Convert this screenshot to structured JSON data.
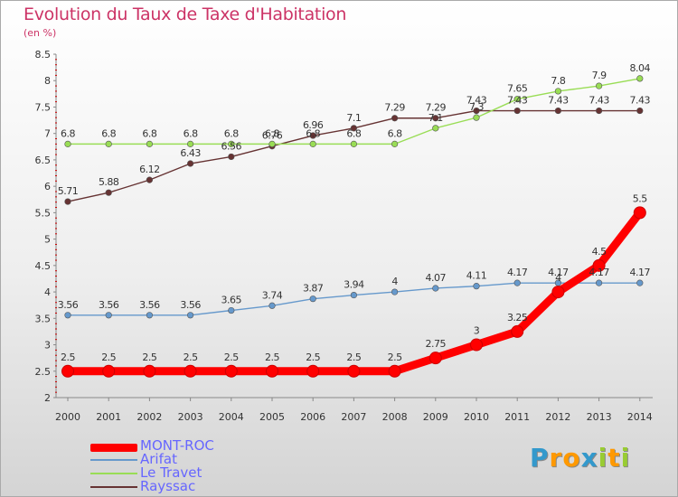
{
  "header": {
    "title": "Evolution du Taux de Taxe d'Habitation",
    "unit": "(en %)"
  },
  "chart_data": {
    "type": "line",
    "title": "Evolution du Taux de Taxe d'Habitation",
    "ylabel": "(en %)",
    "xlabel": "",
    "x": [
      "2000",
      "2001",
      "2002",
      "2003",
      "2004",
      "2005",
      "2006",
      "2007",
      "2008",
      "2009",
      "2010",
      "2011",
      "2012",
      "2013",
      "2014"
    ],
    "ylim": [
      2,
      8.5
    ],
    "yticks": [
      "2",
      "2.5",
      "3",
      "3.5",
      "4",
      "4.5",
      "5",
      "5.5",
      "6",
      "6.5",
      "7",
      "7.5",
      "8",
      "8.5"
    ],
    "grid": false,
    "legend_position": "bottom-left",
    "series": [
      {
        "name": "MONT-ROC",
        "color": "#ff0000",
        "values": [
          2.5,
          2.5,
          2.5,
          2.5,
          2.5,
          2.5,
          2.5,
          2.5,
          2.5,
          2.75,
          3,
          3.25,
          4,
          4.5,
          5.5
        ],
        "labels": [
          "2.5",
          "2.5",
          "2.5",
          "2.5",
          "2.5",
          "2.5",
          "2.5",
          "2.5",
          "2.5",
          "2.75",
          "3",
          "3.25",
          "4",
          "4.5",
          "5.5"
        ]
      },
      {
        "name": "Arifat",
        "color": "#6699cc",
        "values": [
          3.56,
          3.56,
          3.56,
          3.56,
          3.65,
          3.74,
          3.87,
          3.94,
          4,
          4.07,
          4.11,
          4.17,
          4.17,
          4.17,
          4.17
        ],
        "labels": [
          "3.56",
          "3.56",
          "3.56",
          "3.56",
          "3.65",
          "3.74",
          "3.87",
          "3.94",
          "4",
          "4.07",
          "4.11",
          "4.17",
          "4.17",
          "4.17",
          "4.17"
        ]
      },
      {
        "name": "Le Travet",
        "color": "#99dd55",
        "values": [
          6.8,
          6.8,
          6.8,
          6.8,
          6.8,
          6.8,
          6.8,
          6.8,
          6.8,
          7.1,
          7.3,
          7.65,
          7.8,
          7.9,
          8.04
        ],
        "labels": [
          "6.8",
          "6.8",
          "6.8",
          "6.8",
          "6.8",
          "6.8",
          "6.8",
          "6.8",
          "6.8",
          "7.1",
          "7.3",
          "7.65",
          "7.8",
          "7.9",
          "8.04"
        ]
      },
      {
        "name": "Rayssac",
        "color": "#663333",
        "values": [
          5.71,
          5.88,
          6.12,
          6.43,
          6.56,
          6.76,
          6.96,
          7.1,
          7.29,
          7.29,
          7.43,
          7.43,
          7.43,
          7.43,
          7.43
        ],
        "labels": [
          "5.71",
          "5.88",
          "6.12",
          "6.43",
          "6.56",
          "6.76",
          "6.96",
          "7.1",
          "7.29",
          "7.29",
          "7.43",
          "7.43",
          "7.43",
          "7.43",
          "7.43"
        ]
      }
    ]
  },
  "legend": {
    "items": [
      "MONT-ROC",
      "Arifat",
      "Le Travet",
      "Rayssac"
    ]
  },
  "logo": {
    "letters": [
      "P",
      "r",
      "o",
      "x",
      "i",
      "t",
      "i"
    ],
    "colors": [
      "#3399cc",
      "#ff9900",
      "#ff9900",
      "#3399cc",
      "#99cc33",
      "#ff9900",
      "#99cc33"
    ]
  }
}
